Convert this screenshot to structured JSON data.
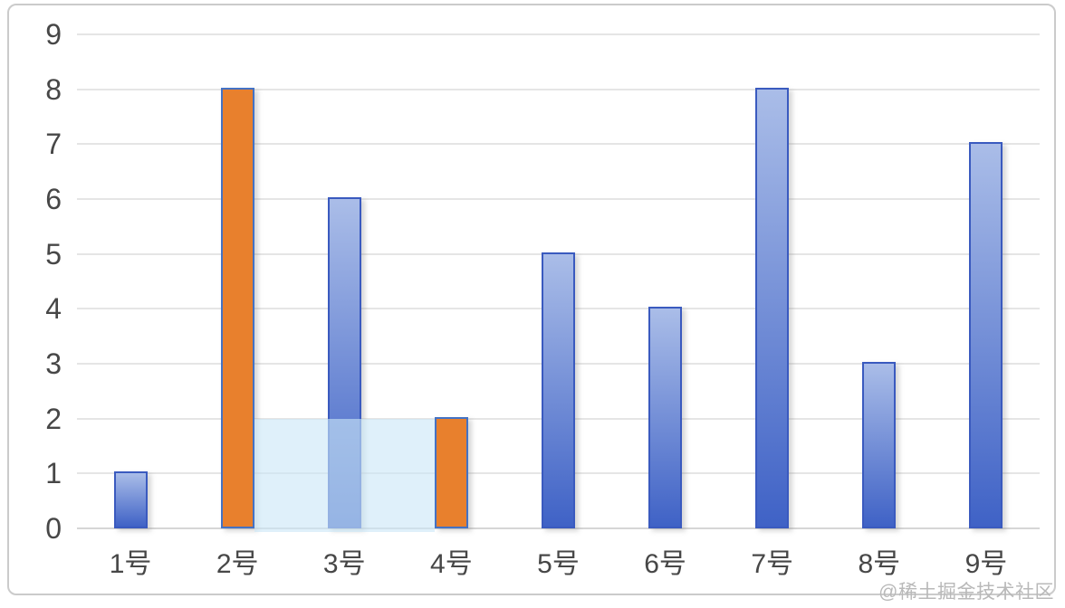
{
  "chart_data": {
    "type": "bar",
    "title": "",
    "xlabel": "",
    "ylabel": "",
    "categories": [
      "1号",
      "2号",
      "3号",
      "4号",
      "5号",
      "6号",
      "7号",
      "8号",
      "9号"
    ],
    "values": [
      1,
      8,
      6,
      2,
      5,
      4,
      8,
      3,
      7
    ],
    "bar_colors": [
      "blue",
      "orange",
      "blue",
      "orange",
      "blue",
      "blue",
      "blue",
      "blue",
      "blue"
    ],
    "ylim": [
      0,
      9
    ],
    "y_ticks": [
      0,
      1,
      2,
      3,
      4,
      5,
      6,
      7,
      8,
      9
    ],
    "grid": true,
    "legend": "none",
    "highlight_region": {
      "description": "translucent light-blue brush/selection rectangle",
      "start_after_bar_index": 1,
      "end_before_bar_index": 3,
      "y_from": 0,
      "y_to": 2
    }
  },
  "colors": {
    "bar_blue_top": "#AABDE8",
    "bar_blue_bottom": "#3F62C6",
    "bar_blue_border": "#3A5ABF",
    "bar_orange_fill": "#E8802D",
    "bar_orange_border": "#4472C4",
    "highlight_fill": "rgba(203, 231, 247, 0.62)",
    "gridline": "#E5E5E5",
    "baseline": "#D6D6D6",
    "axis_text": "#474747",
    "card_border": "#CBCBCB",
    "watermark": "#B9B9B9"
  },
  "watermark": "@稀土掘金技术社区"
}
